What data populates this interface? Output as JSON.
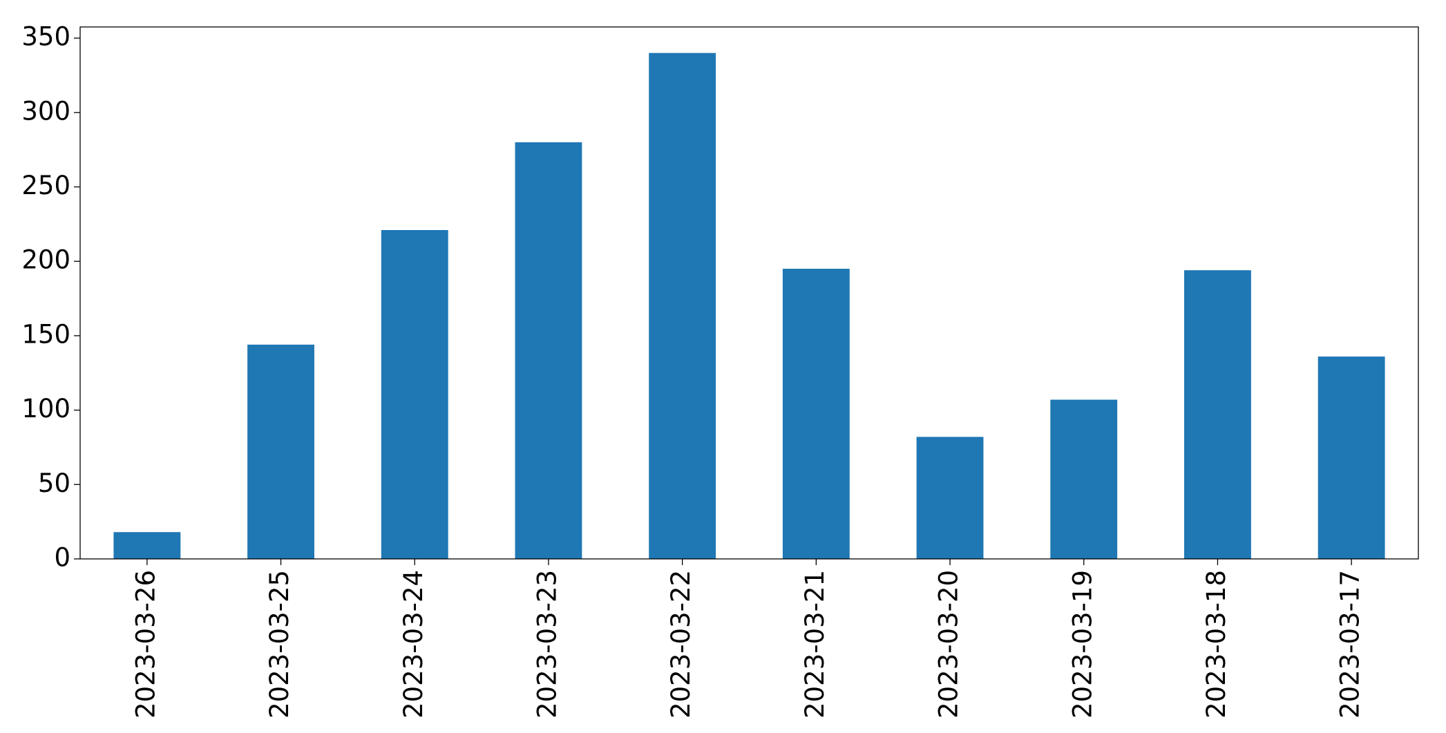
{
  "chart_data": {
    "type": "bar",
    "categories": [
      "2023-03-26",
      "2023-03-25",
      "2023-03-24",
      "2023-03-23",
      "2023-03-22",
      "2023-03-21",
      "2023-03-20",
      "2023-03-19",
      "2023-03-18",
      "2023-03-17"
    ],
    "values": [
      18,
      144,
      221,
      280,
      340,
      195,
      82,
      107,
      194,
      136
    ],
    "color": "#1f77b4",
    "ylim": [
      0,
      357.5
    ],
    "yticks": [
      0,
      50,
      100,
      150,
      200,
      250,
      300,
      350
    ],
    "grid": false
  }
}
